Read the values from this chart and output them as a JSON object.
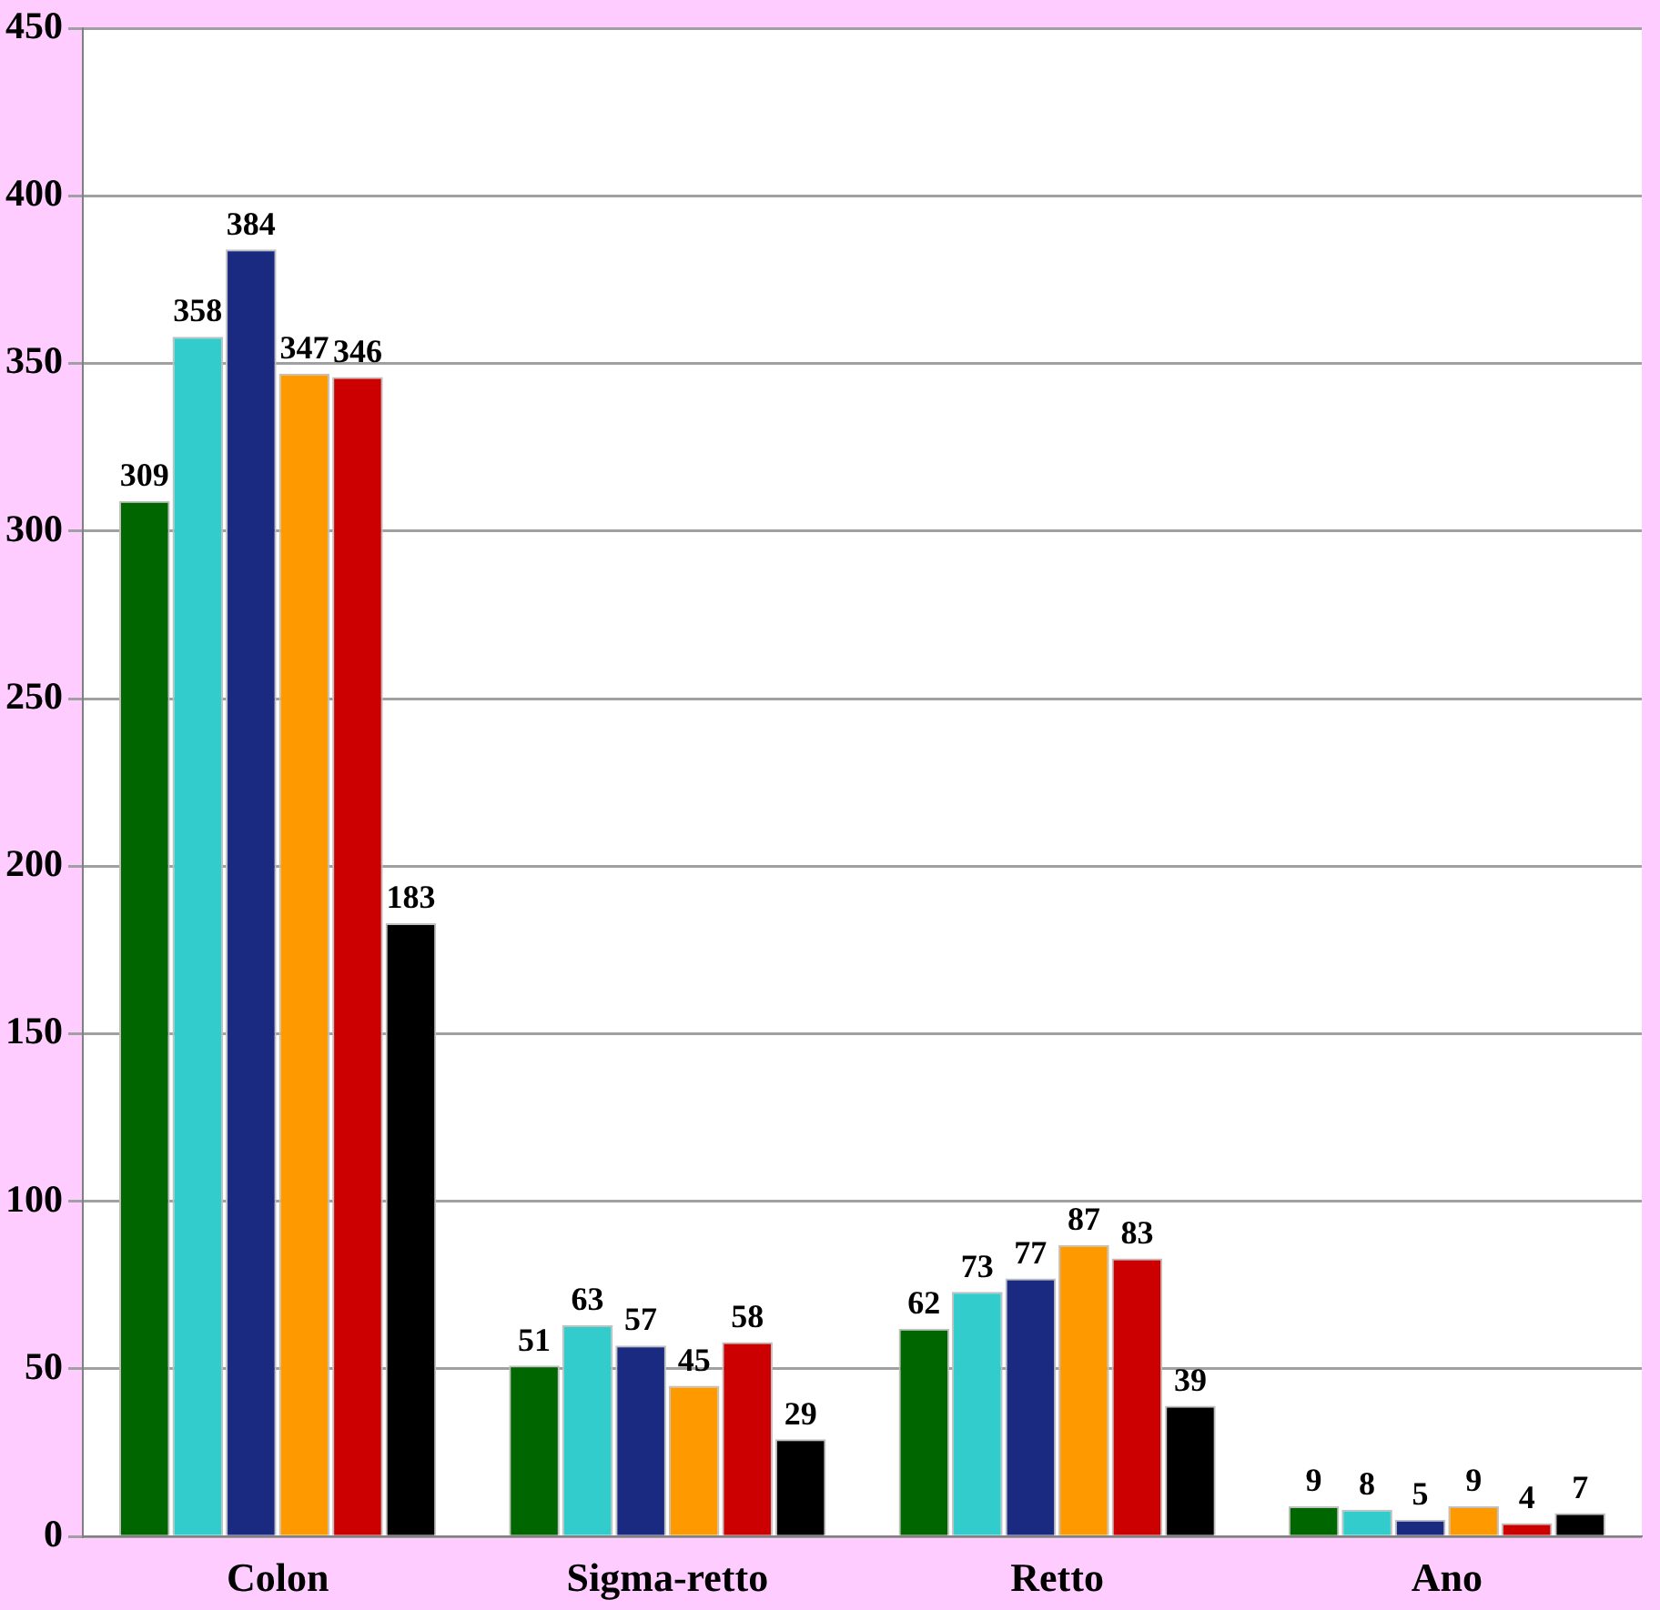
{
  "chart_data": {
    "type": "bar",
    "categories": [
      "Colon",
      "Sigma-retto",
      "Retto",
      "Ano"
    ],
    "series": [
      {
        "color": "#006600",
        "values": [
          309,
          51,
          62,
          9
        ]
      },
      {
        "color": "#33cccc",
        "values": [
          358,
          63,
          73,
          8
        ]
      },
      {
        "color": "#1a2a80",
        "values": [
          384,
          57,
          77,
          5
        ]
      },
      {
        "color": "#ff9900",
        "values": [
          347,
          45,
          87,
          9
        ]
      },
      {
        "color": "#cc0000",
        "values": [
          346,
          58,
          83,
          4
        ]
      },
      {
        "color": "#000000",
        "values": [
          183,
          29,
          39,
          7
        ]
      }
    ],
    "ylim": [
      0,
      450
    ],
    "yticks": [
      0,
      50,
      100,
      150,
      200,
      250,
      300,
      350,
      400,
      450
    ],
    "grid": "y",
    "legend": false,
    "data_labels": true
  }
}
